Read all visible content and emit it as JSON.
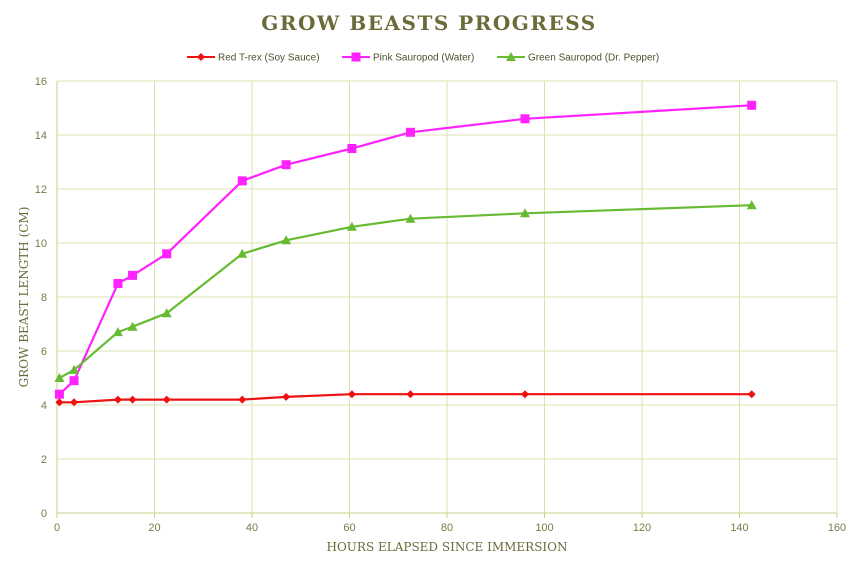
{
  "chart_data": {
    "type": "line",
    "title": "GROW BEASTS PROGRESS",
    "xlabel": "HOURS ELAPSED SINCE IMMERSION",
    "ylabel": "GROW BEAST LENGTH (CM)",
    "xlim": [
      0,
      160
    ],
    "ylim": [
      0,
      16
    ],
    "x_ticks": [
      0,
      20,
      40,
      60,
      80,
      100,
      120,
      140,
      160
    ],
    "y_ticks": [
      0,
      2,
      4,
      6,
      8,
      10,
      12,
      14,
      16
    ],
    "grid": true,
    "legend_position": "top",
    "series": [
      {
        "name": "Red T-rex (Soy Sauce)",
        "color": "#ee1111",
        "marker": "diamond",
        "points": [
          [
            0.5,
            4.1
          ],
          [
            3.5,
            4.1
          ],
          [
            12.5,
            4.2
          ],
          [
            15.5,
            4.2
          ],
          [
            22.5,
            4.2
          ],
          [
            38,
            4.2
          ],
          [
            47,
            4.3
          ],
          [
            60.5,
            4.4
          ],
          [
            72.5,
            4.4
          ],
          [
            96,
            4.4
          ],
          [
            142.5,
            4.4
          ]
        ]
      },
      {
        "name": "Pink Sauropod (Water)",
        "color": "#ff22ff",
        "marker": "square",
        "points": [
          [
            0.5,
            4.4
          ],
          [
            3.5,
            4.9
          ],
          [
            12.5,
            8.5
          ],
          [
            15.5,
            8.8
          ],
          [
            22.5,
            9.6
          ],
          [
            38,
            12.3
          ],
          [
            47,
            12.9
          ],
          [
            60.5,
            13.5
          ],
          [
            72.5,
            14.1
          ],
          [
            96,
            14.6
          ],
          [
            142.5,
            15.1
          ]
        ]
      },
      {
        "name": "Green Sauropod (Dr. Pepper)",
        "color": "#66bb33",
        "marker": "triangle",
        "points": [
          [
            0.5,
            5.0
          ],
          [
            3.5,
            5.3
          ],
          [
            12.5,
            6.7
          ],
          [
            15.5,
            6.9
          ],
          [
            22.5,
            7.4
          ],
          [
            38,
            9.6
          ],
          [
            47,
            10.1
          ],
          [
            60.5,
            10.6
          ],
          [
            72.5,
            10.9
          ],
          [
            96,
            11.1
          ],
          [
            142.5,
            11.4
          ]
        ]
      }
    ]
  }
}
